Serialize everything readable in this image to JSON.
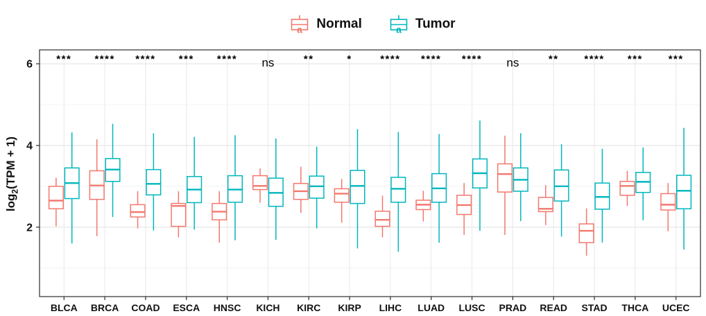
{
  "legend": {
    "items": [
      {
        "label": "Normal",
        "key_letter": "a",
        "color": "#F3786E"
      },
      {
        "label": "Tumor",
        "key_letter": "a",
        "color": "#00B6BE"
      }
    ]
  },
  "y_axis": {
    "title": {
      "prefix": "log",
      "sub": "2",
      "suffix": "(TPM + 1)"
    },
    "ticks": [
      2,
      4,
      6
    ]
  },
  "chart_data": {
    "type": "boxplot",
    "title": "",
    "xlabel": "",
    "ylabel": "log2(TPM + 1)",
    "ylim": [
      0.3,
      6.34
    ],
    "grid": {
      "major_y": [
        2,
        4,
        6
      ],
      "minor_y": [
        1,
        3,
        5
      ],
      "vertical_at_categories": true
    },
    "legend_position": "top",
    "categories": [
      "BLCA",
      "BRCA",
      "COAD",
      "ESCA",
      "HNSC",
      "KICH",
      "KIRC",
      "KIRP",
      "LIHC",
      "LUAD",
      "LUSC",
      "PRAD",
      "READ",
      "STAD",
      "THCA",
      "UCEC"
    ],
    "significance": [
      "***",
      "****",
      "****",
      "***",
      "****",
      "ns",
      "**",
      "*",
      "****",
      "****",
      "****",
      "ns",
      "**",
      "****",
      "***",
      "***"
    ],
    "stat_order": [
      "whisker_low",
      "q1",
      "median",
      "q3",
      "whisker_high"
    ],
    "series": [
      {
        "name": "Normal",
        "color": "#F3786E",
        "stats": [
          [
            2.02,
            2.45,
            2.65,
            3.0,
            3.21
          ],
          [
            1.78,
            2.68,
            3.02,
            3.38,
            4.15
          ],
          [
            1.97,
            2.25,
            2.37,
            2.55,
            2.88
          ],
          [
            1.75,
            2.02,
            2.52,
            2.58,
            2.88
          ],
          [
            1.62,
            2.18,
            2.38,
            2.58,
            2.88
          ],
          [
            2.6,
            2.92,
            3.01,
            3.26,
            3.44
          ],
          [
            2.35,
            2.68,
            2.88,
            3.07,
            3.48
          ],
          [
            2.11,
            2.61,
            2.82,
            2.94,
            3.18
          ],
          [
            1.75,
            2.02,
            2.18,
            2.39,
            2.77
          ],
          [
            2.14,
            2.43,
            2.55,
            2.66,
            2.89
          ],
          [
            1.81,
            2.31,
            2.54,
            2.78,
            3.08
          ],
          [
            1.81,
            2.86,
            3.3,
            3.55,
            4.24
          ],
          [
            2.05,
            2.38,
            2.45,
            2.73,
            3.03
          ],
          [
            1.3,
            1.62,
            1.91,
            2.08,
            2.46
          ],
          [
            2.52,
            2.78,
            3.01,
            3.12,
            3.38
          ],
          [
            1.9,
            2.42,
            2.55,
            2.82,
            3.08
          ]
        ]
      },
      {
        "name": "Tumor",
        "color": "#00B6BE",
        "stats": [
          [
            1.6,
            2.7,
            3.08,
            3.45,
            4.32
          ],
          [
            2.25,
            3.12,
            3.41,
            3.68,
            4.53
          ],
          [
            1.92,
            2.79,
            3.06,
            3.41,
            4.3
          ],
          [
            1.94,
            2.6,
            2.92,
            3.24,
            4.21
          ],
          [
            1.68,
            2.61,
            2.92,
            3.26,
            4.25
          ],
          [
            1.69,
            2.51,
            2.84,
            3.2,
            4.17
          ],
          [
            1.97,
            2.71,
            3.0,
            3.25,
            3.97
          ],
          [
            1.48,
            2.58,
            3.01,
            3.39,
            4.4
          ],
          [
            1.4,
            2.61,
            2.94,
            3.22,
            4.33
          ],
          [
            1.62,
            2.61,
            2.95,
            3.31,
            4.28
          ],
          [
            1.91,
            2.96,
            3.32,
            3.67,
            4.61
          ],
          [
            2.15,
            2.88,
            3.16,
            3.45,
            4.3
          ],
          [
            1.77,
            2.64,
            3.0,
            3.4,
            4.03
          ],
          [
            1.62,
            2.44,
            2.74,
            3.08,
            3.92
          ],
          [
            2.17,
            2.85,
            3.11,
            3.34,
            3.95
          ],
          [
            1.45,
            2.45,
            2.89,
            3.27,
            4.43
          ]
        ]
      }
    ]
  }
}
